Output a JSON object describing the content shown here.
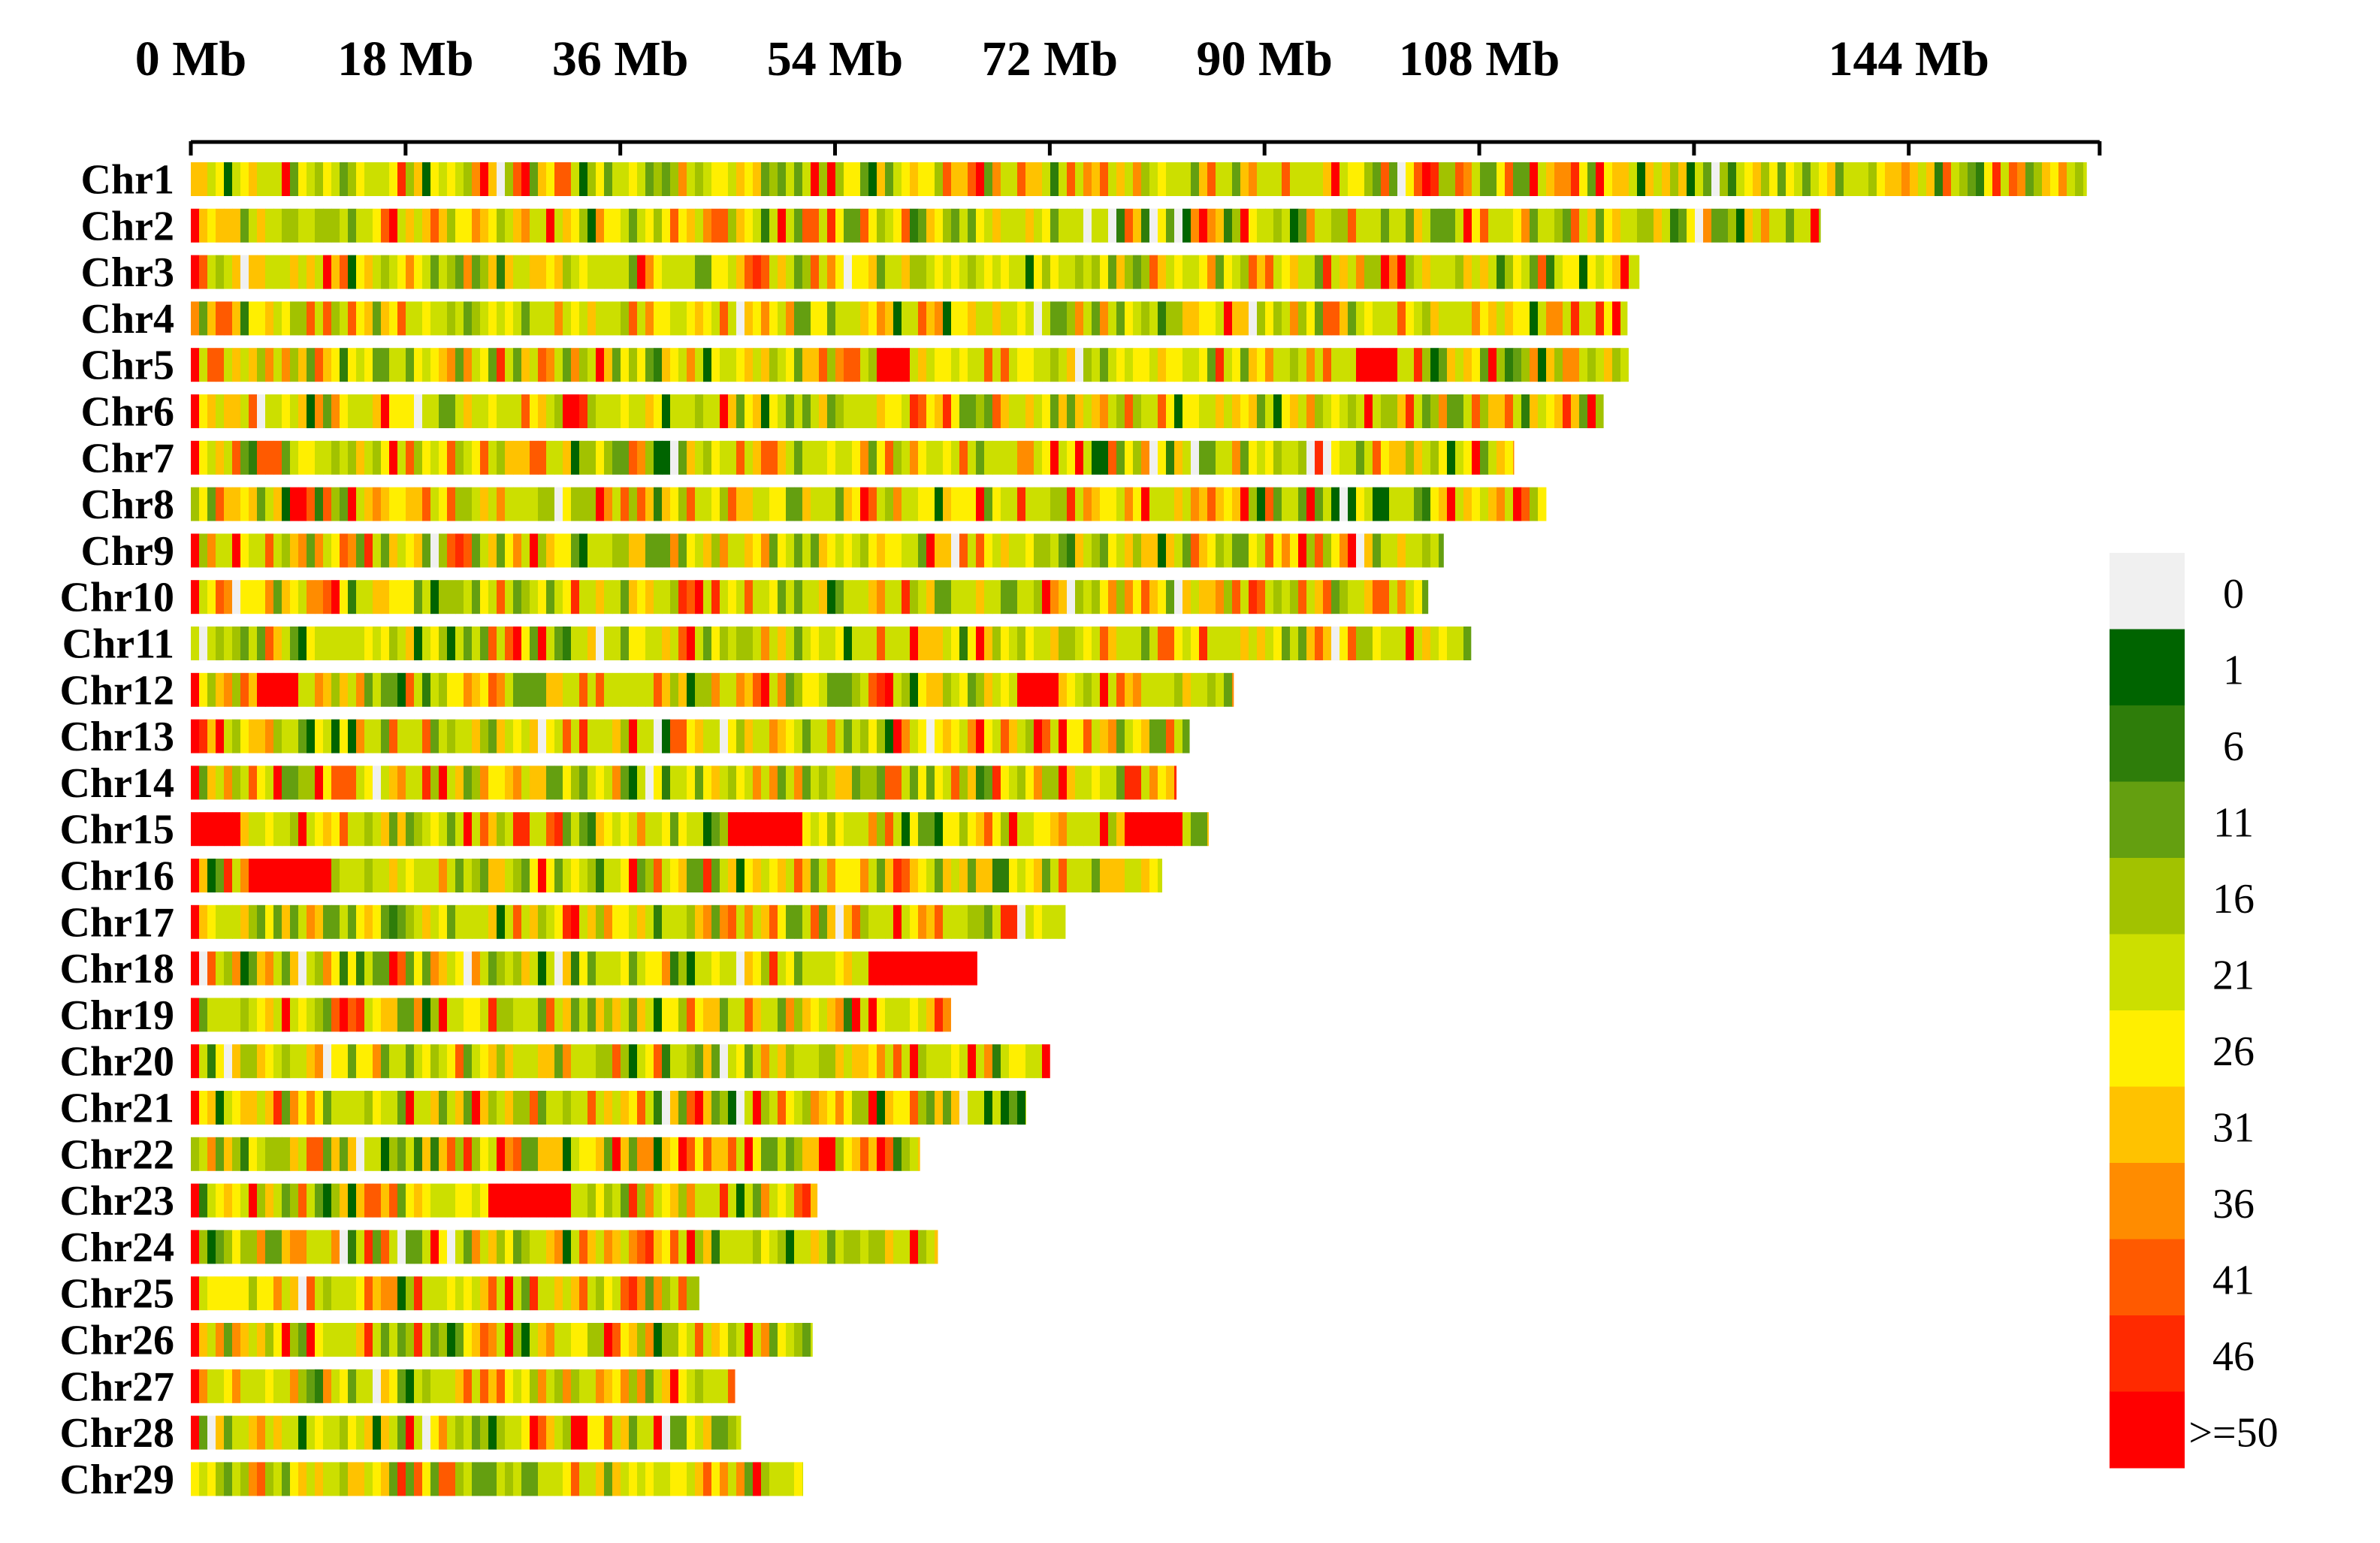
{
  "chart_data": {
    "type": "heatmap",
    "title": "",
    "xlabel": "",
    "ylabel": "",
    "x_unit": "Mb",
    "x_ticks": [
      0,
      18,
      36,
      54,
      72,
      90,
      108,
      126,
      144,
      160
    ],
    "x_tick_labels": [
      "0 Mb",
      "18 Mb",
      "36 Mb",
      "54 Mb",
      "72 Mb",
      "90 Mb",
      "108 Mb",
      "",
      "144 Mb",
      ""
    ],
    "xlim": [
      0,
      160
    ],
    "chromosomes": [
      {
        "name": "Chr1",
        "length": 158.9
      },
      {
        "name": "Chr2",
        "length": 136.6
      },
      {
        "name": "Chr3",
        "length": 121.4
      },
      {
        "name": "Chr4",
        "length": 120.4
      },
      {
        "name": "Chr5",
        "length": 120.5
      },
      {
        "name": "Chr6",
        "length": 118.4
      },
      {
        "name": "Chr7",
        "length": 110.9
      },
      {
        "name": "Chr8",
        "length": 113.6
      },
      {
        "name": "Chr9",
        "length": 105.0
      },
      {
        "name": "Chr10",
        "length": 103.7
      },
      {
        "name": "Chr11",
        "length": 107.3
      },
      {
        "name": "Chr12",
        "length": 87.4
      },
      {
        "name": "Chr13",
        "length": 83.7
      },
      {
        "name": "Chr14",
        "length": 82.6
      },
      {
        "name": "Chr15",
        "length": 85.3
      },
      {
        "name": "Chr16",
        "length": 81.4
      },
      {
        "name": "Chr17",
        "length": 73.3
      },
      {
        "name": "Chr18",
        "length": 65.9
      },
      {
        "name": "Chr19",
        "length": 63.7
      },
      {
        "name": "Chr20",
        "length": 72.0
      },
      {
        "name": "Chr21",
        "length": 70.0
      },
      {
        "name": "Chr22",
        "length": 61.1
      },
      {
        "name": "Chr23",
        "length": 52.5
      },
      {
        "name": "Chr24",
        "length": 62.6
      },
      {
        "name": "Chr25",
        "length": 42.6
      },
      {
        "name": "Chr26",
        "length": 52.1
      },
      {
        "name": "Chr27",
        "length": 45.6
      },
      {
        "name": "Chr28",
        "length": 46.1
      },
      {
        "name": "Chr29",
        "length": 51.3
      }
    ],
    "hotspots": {
      "Chr5": [
        [
          57.5,
          60.5,
          50
        ],
        [
          98,
          101,
          50
        ]
      ],
      "Chr12": [
        [
          6,
          9,
          50
        ],
        [
          69,
          73,
          50
        ]
      ],
      "Chr15": [
        [
          0,
          4,
          50
        ],
        [
          45,
          51,
          50
        ],
        [
          78,
          83,
          50
        ]
      ],
      "Chr16": [
        [
          5,
          12,
          50
        ]
      ],
      "Chr18": [
        [
          57,
          66,
          50
        ]
      ],
      "Chr23": [
        [
          25,
          32,
          50
        ]
      ]
    },
    "legend": {
      "title": "",
      "labels": [
        "0",
        "1",
        "6",
        "11",
        "16",
        "21",
        "26",
        "31",
        "36",
        "41",
        "46",
        ">=50"
      ],
      "colors": [
        "#F0F0F0",
        "#006400",
        "#2E7D0A",
        "#649F10",
        "#A2C200",
        "#CCDF00",
        "#FFEF00",
        "#FFC200",
        "#FF8C00",
        "#FF5A00",
        "#FF2A00",
        "#FF0000"
      ]
    },
    "legend_placement": "right",
    "grid": false
  }
}
